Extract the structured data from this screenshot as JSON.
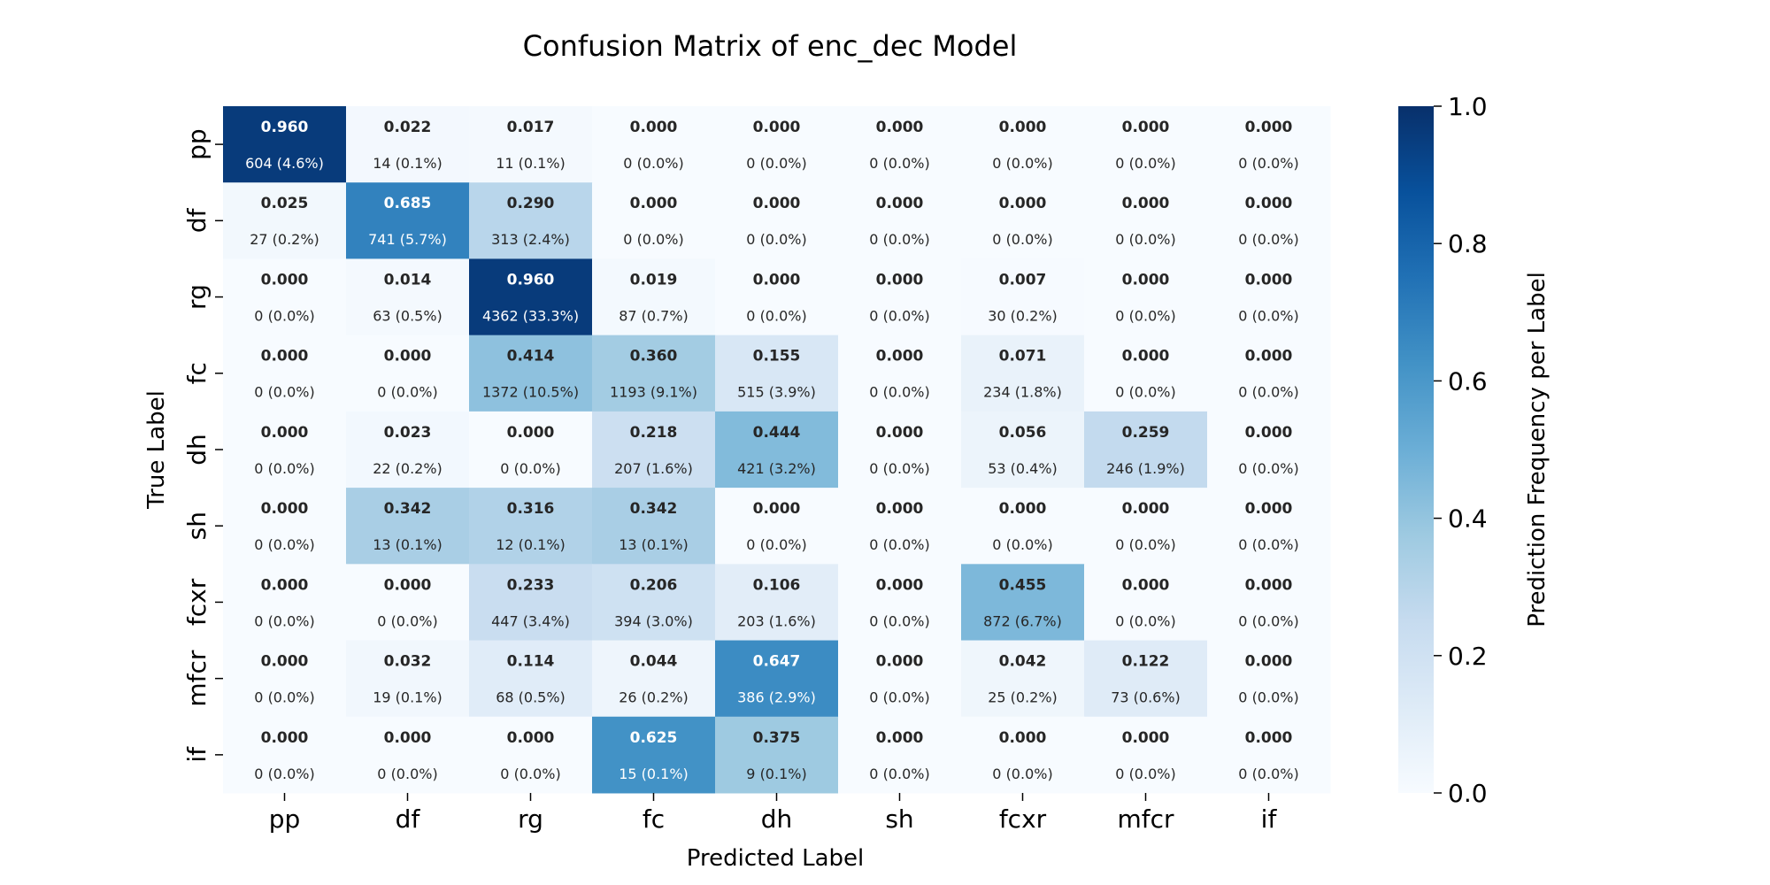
{
  "chart_data": {
    "type": "heatmap",
    "title": "Confusion Matrix of enc_dec Model",
    "xlabel": "Predicted Label",
    "ylabel": "True Label",
    "x_categories": [
      "pp",
      "df",
      "rg",
      "fc",
      "dh",
      "sh",
      "fcxr",
      "mfcr",
      "if"
    ],
    "y_categories": [
      "pp",
      "df",
      "rg",
      "fc",
      "dh",
      "sh",
      "fcxr",
      "mfcr",
      "if"
    ],
    "values": [
      [
        0.96,
        0.022,
        0.017,
        0.0,
        0.0,
        0.0,
        0.0,
        0.0,
        0.0
      ],
      [
        0.025,
        0.685,
        0.29,
        0.0,
        0.0,
        0.0,
        0.0,
        0.0,
        0.0
      ],
      [
        0.0,
        0.014,
        0.96,
        0.019,
        0.0,
        0.0,
        0.007,
        0.0,
        0.0
      ],
      [
        0.0,
        0.0,
        0.414,
        0.36,
        0.155,
        0.0,
        0.071,
        0.0,
        0.0
      ],
      [
        0.0,
        0.023,
        0.0,
        0.218,
        0.444,
        0.0,
        0.056,
        0.259,
        0.0
      ],
      [
        0.0,
        0.342,
        0.316,
        0.342,
        0.0,
        0.0,
        0.0,
        0.0,
        0.0
      ],
      [
        0.0,
        0.0,
        0.233,
        0.206,
        0.106,
        0.0,
        0.455,
        0.0,
        0.0
      ],
      [
        0.0,
        0.032,
        0.114,
        0.044,
        0.647,
        0.0,
        0.042,
        0.122,
        0.0
      ],
      [
        0.0,
        0.0,
        0.0,
        0.625,
        0.375,
        0.0,
        0.0,
        0.0,
        0.0
      ]
    ],
    "value_labels": [
      [
        "0.960",
        "0.022",
        "0.017",
        "0.000",
        "0.000",
        "0.000",
        "0.000",
        "0.000",
        "0.000"
      ],
      [
        "0.025",
        "0.685",
        "0.290",
        "0.000",
        "0.000",
        "0.000",
        "0.000",
        "0.000",
        "0.000"
      ],
      [
        "0.000",
        "0.014",
        "0.960",
        "0.019",
        "0.000",
        "0.000",
        "0.007",
        "0.000",
        "0.000"
      ],
      [
        "0.000",
        "0.000",
        "0.414",
        "0.360",
        "0.155",
        "0.000",
        "0.071",
        "0.000",
        "0.000"
      ],
      [
        "0.000",
        "0.023",
        "0.000",
        "0.218",
        "0.444",
        "0.000",
        "0.056",
        "0.259",
        "0.000"
      ],
      [
        "0.000",
        "0.342",
        "0.316",
        "0.342",
        "0.000",
        "0.000",
        "0.000",
        "0.000",
        "0.000"
      ],
      [
        "0.000",
        "0.000",
        "0.233",
        "0.206",
        "0.106",
        "0.000",
        "0.455",
        "0.000",
        "0.000"
      ],
      [
        "0.000",
        "0.032",
        "0.114",
        "0.044",
        "0.647",
        "0.000",
        "0.042",
        "0.122",
        "0.000"
      ],
      [
        "0.000",
        "0.000",
        "0.000",
        "0.625",
        "0.375",
        "0.000",
        "0.000",
        "0.000",
        "0.000"
      ]
    ],
    "count_labels": [
      [
        "604 (4.6%)",
        "14 (0.1%)",
        "11 (0.1%)",
        "0 (0.0%)",
        "0 (0.0%)",
        "0 (0.0%)",
        "0 (0.0%)",
        "0 (0.0%)",
        "0 (0.0%)"
      ],
      [
        "27 (0.2%)",
        "741 (5.7%)",
        "313 (2.4%)",
        "0 (0.0%)",
        "0 (0.0%)",
        "0 (0.0%)",
        "0 (0.0%)",
        "0 (0.0%)",
        "0 (0.0%)"
      ],
      [
        "0 (0.0%)",
        "63 (0.5%)",
        "4362 (33.3%)",
        "87 (0.7%)",
        "0 (0.0%)",
        "0 (0.0%)",
        "30 (0.2%)",
        "0 (0.0%)",
        "0 (0.0%)"
      ],
      [
        "0 (0.0%)",
        "0 (0.0%)",
        "1372 (10.5%)",
        "1193 (9.1%)",
        "515 (3.9%)",
        "0 (0.0%)",
        "234 (1.8%)",
        "0 (0.0%)",
        "0 (0.0%)"
      ],
      [
        "0 (0.0%)",
        "22 (0.2%)",
        "0 (0.0%)",
        "207 (1.6%)",
        "421 (3.2%)",
        "0 (0.0%)",
        "53 (0.4%)",
        "246 (1.9%)",
        "0 (0.0%)"
      ],
      [
        "0 (0.0%)",
        "13 (0.1%)",
        "12 (0.1%)",
        "13 (0.1%)",
        "0 (0.0%)",
        "0 (0.0%)",
        "0 (0.0%)",
        "0 (0.0%)",
        "0 (0.0%)"
      ],
      [
        "0 (0.0%)",
        "0 (0.0%)",
        "447 (3.4%)",
        "394 (3.0%)",
        "203 (1.6%)",
        "0 (0.0%)",
        "872 (6.7%)",
        "0 (0.0%)",
        "0 (0.0%)"
      ],
      [
        "0 (0.0%)",
        "19 (0.1%)",
        "68 (0.5%)",
        "26 (0.2%)",
        "386 (2.9%)",
        "0 (0.0%)",
        "25 (0.2%)",
        "73 (0.6%)",
        "0 (0.0%)"
      ],
      [
        "0 (0.0%)",
        "0 (0.0%)",
        "0 (0.0%)",
        "15 (0.1%)",
        "9 (0.1%)",
        "0 (0.0%)",
        "0 (0.0%)",
        "0 (0.0%)",
        "0 (0.0%)"
      ]
    ],
    "colorbar": {
      "label": "Prediction Frequency per Label",
      "range": [
        0.0,
        1.0
      ],
      "ticks": [
        "0.0",
        "0.2",
        "0.4",
        "0.6",
        "0.8",
        "1.0"
      ],
      "colormap": "Blues"
    },
    "grid": false,
    "legend": "colorbar-right"
  }
}
